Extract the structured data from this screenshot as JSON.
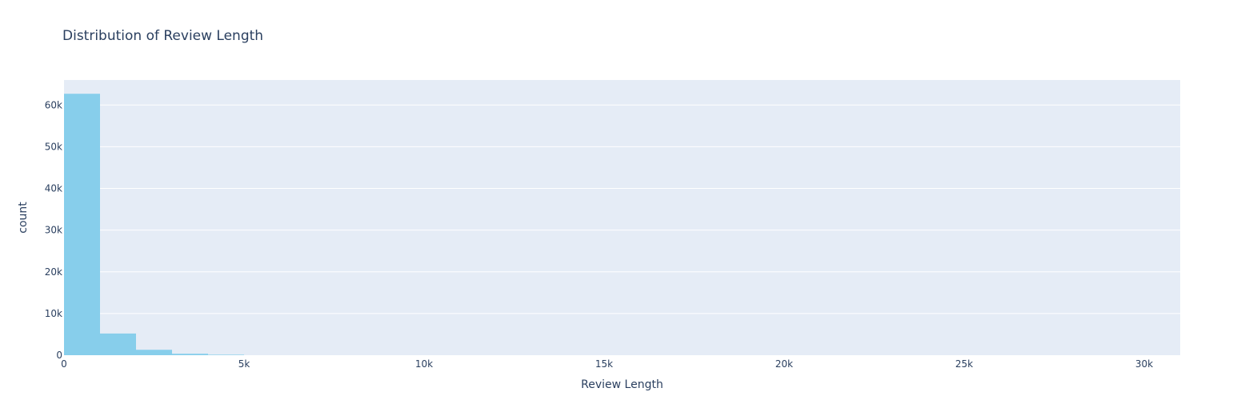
{
  "chart_data": {
    "type": "bar",
    "subtype": "histogram",
    "title": "Distribution of Review Length",
    "xlabel": "Review Length",
    "ylabel": "count",
    "bin_size": 1000,
    "bins": [
      {
        "start": 0,
        "end": 1000,
        "count": 62700
      },
      {
        "start": 1000,
        "end": 2000,
        "count": 5200
      },
      {
        "start": 2000,
        "end": 3000,
        "count": 1300
      },
      {
        "start": 3000,
        "end": 4000,
        "count": 350
      },
      {
        "start": 4000,
        "end": 5000,
        "count": 120
      }
    ],
    "xlim": [
      0,
      31000
    ],
    "ylim": [
      0,
      66000
    ],
    "x_ticks": [
      0,
      5000,
      10000,
      15000,
      20000,
      25000,
      30000
    ],
    "x_tick_labels": [
      "0",
      "5k",
      "10k",
      "15k",
      "20k",
      "25k",
      "30k"
    ],
    "y_ticks": [
      0,
      10000,
      20000,
      30000,
      40000,
      50000,
      60000
    ],
    "y_tick_labels": [
      "0",
      "10k",
      "20k",
      "30k",
      "40k",
      "50k",
      "60k"
    ],
    "grid": true,
    "colors": {
      "bar": "#87ceeb",
      "plot_background": "#e5ecf6",
      "gridline": "#ffffff",
      "text": "#2a3f5f"
    }
  }
}
